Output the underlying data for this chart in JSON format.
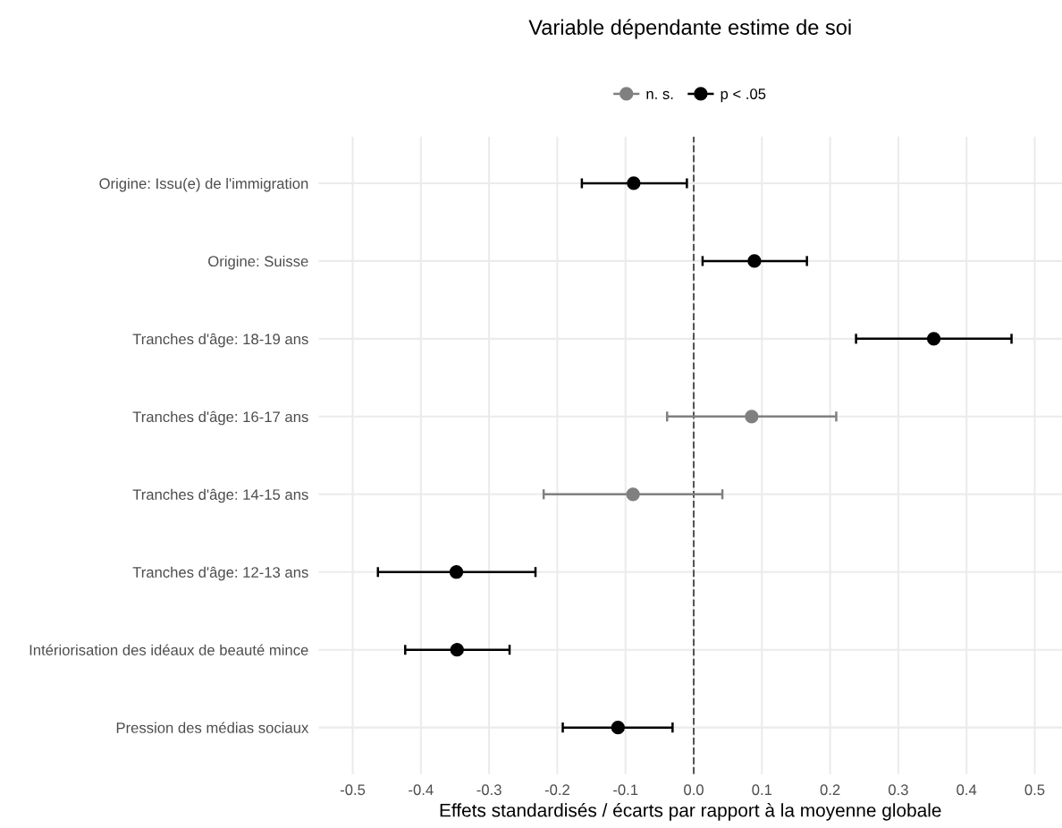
{
  "chart_data": {
    "type": "scatter",
    "orientation": "horizontal",
    "title": "Variable dépendante estime de soi",
    "xlabel": "Effets standardisés / écarts par rapport à la moyenne globale",
    "categories": [
      "Origine: Issu(e) de l'immigration",
      "Origine: Suisse",
      "Tranches d'âge: 18-19 ans",
      "Tranches d'âge: 16-17 ans",
      "Tranches d'âge: 14-15 ans",
      "Tranches d'âge: 12-13 ans",
      "Intériorisation des idéaux de beauté mince",
      "Pression des médias sociaux"
    ],
    "series": [
      {
        "name": "n. s.",
        "color": "#808080",
        "values": [
          null,
          null,
          null,
          0.085,
          -0.089,
          null,
          null,
          null
        ],
        "errors": [
          null,
          null,
          null,
          [
            -0.039,
            0.209
          ],
          [
            -0.22,
            0.042
          ],
          null,
          null,
          null
        ]
      },
      {
        "name": "p < .05",
        "color": "#000000",
        "values": [
          -0.088,
          0.089,
          0.352,
          null,
          null,
          -0.348,
          -0.347,
          -0.111
        ],
        "errors": [
          [
            -0.164,
            -0.01
          ],
          [
            0.013,
            0.166
          ],
          [
            0.238,
            0.466
          ],
          null,
          null,
          [
            -0.463,
            -0.232
          ],
          [
            -0.423,
            -0.27
          ],
          [
            -0.192,
            -0.031
          ]
        ]
      }
    ],
    "xlim": [
      -0.55,
      0.54
    ],
    "xticks": [
      {
        "value": -0.5,
        "label": "-0.5"
      },
      {
        "value": -0.4,
        "label": "-0.4"
      },
      {
        "value": -0.3,
        "label": "-0.3"
      },
      {
        "value": -0.2,
        "label": "-0.2"
      },
      {
        "value": -0.1,
        "label": "-0.1"
      },
      {
        "value": 0,
        "label": "0.0"
      },
      {
        "value": 0.1,
        "label": "0.1"
      },
      {
        "value": 0.2,
        "label": "0.2"
      },
      {
        "value": 0.3,
        "label": "0.3"
      },
      {
        "value": 0.4,
        "label": "0.4"
      },
      {
        "value": 0.5,
        "label": "0.5"
      }
    ],
    "ref_lines": [
      {
        "axis": "x",
        "value": 0,
        "color": "#555555",
        "line_style": "dashed"
      }
    ],
    "grid": true,
    "legend": "top",
    "marker": "circle"
  }
}
